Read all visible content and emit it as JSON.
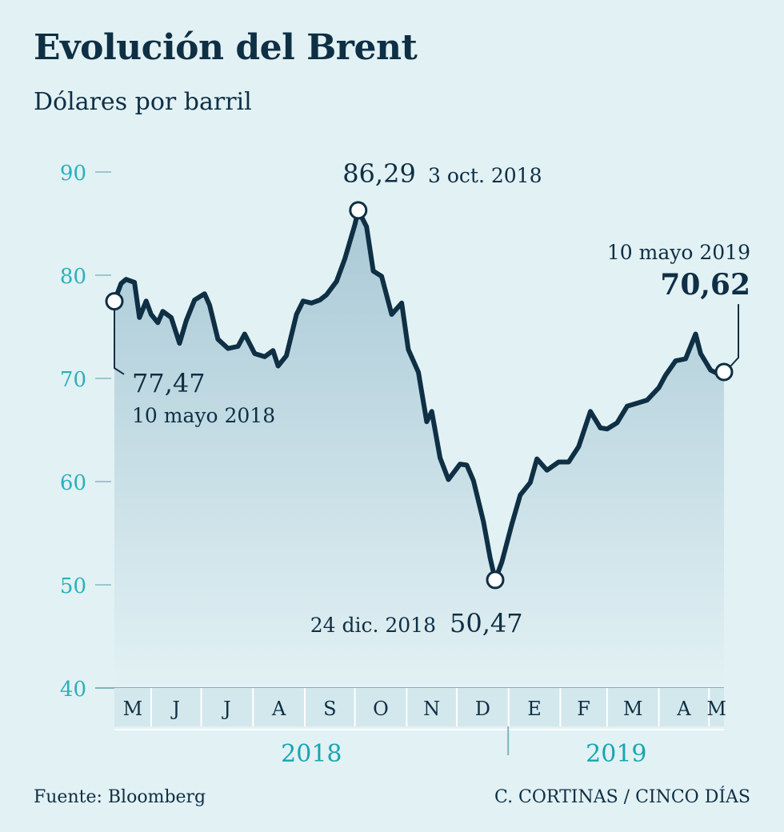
{
  "header": {
    "title": "Evolución del Brent",
    "subtitle": "Dólares por barril"
  },
  "footer": {
    "source": "Fuente: Bloomberg",
    "credit": "C. CORTINAS / CINCO DÍAS"
  },
  "colors": {
    "line": "#0e2f44",
    "area_top": "#a9c9d6",
    "area_bottom": "#e2f1f4",
    "tick": "#2ab0ba",
    "year": "#1aa5b0"
  },
  "chart_data": {
    "type": "area",
    "ylim": [
      40,
      90
    ],
    "yticks": [
      "90",
      "80",
      "70",
      "60",
      "50",
      "40"
    ],
    "months": [
      "M",
      "J",
      "J",
      "A",
      "S",
      "O",
      "N",
      "D",
      "E",
      "F",
      "M",
      "A",
      "M"
    ],
    "years": [
      "2018",
      "2019"
    ],
    "series": [
      {
        "x": [
          "2018-05-10",
          "2018-05-14",
          "2018-05-17",
          "2018-05-22",
          "2018-05-25",
          "2018-05-29",
          "2018-06-01",
          "2018-06-05",
          "2018-06-08",
          "2018-06-13",
          "2018-06-18",
          "2018-06-22",
          "2018-06-27",
          "2018-07-03",
          "2018-07-06",
          "2018-07-11",
          "2018-07-17",
          "2018-07-23",
          "2018-07-27",
          "2018-08-02",
          "2018-08-08",
          "2018-08-13",
          "2018-08-16",
          "2018-08-21",
          "2018-08-27",
          "2018-08-31",
          "2018-09-05",
          "2018-09-10",
          "2018-09-14",
          "2018-09-20",
          "2018-09-25",
          "2018-10-01",
          "2018-10-03",
          "2018-10-08",
          "2018-10-12",
          "2018-10-17",
          "2018-10-23",
          "2018-10-29",
          "2018-11-02",
          "2018-11-08",
          "2018-11-13",
          "2018-11-16",
          "2018-11-21",
          "2018-11-26",
          "2018-12-03",
          "2018-12-07",
          "2018-12-11",
          "2018-12-17",
          "2018-12-21",
          "2018-12-24",
          "2018-12-28",
          "2019-01-03",
          "2019-01-08",
          "2019-01-14",
          "2019-01-18",
          "2019-01-24",
          "2019-01-31",
          "2019-02-06",
          "2019-02-12",
          "2019-02-19",
          "2019-02-25",
          "2019-03-01",
          "2019-03-07",
          "2019-03-13",
          "2019-03-19",
          "2019-03-25",
          "2019-04-01",
          "2019-04-05",
          "2019-04-11",
          "2019-04-17",
          "2019-04-23",
          "2019-04-26",
          "2019-05-02",
          "2019-05-07",
          "2019-05-10"
        ],
        "values": [
          77.47,
          79.2,
          79.6,
          79.3,
          75.9,
          77.5,
          76.2,
          75.4,
          76.5,
          75.9,
          73.4,
          75.6,
          77.6,
          78.2,
          77.1,
          73.8,
          72.9,
          73.1,
          74.3,
          72.4,
          72.1,
          72.7,
          71.2,
          72.2,
          76.2,
          77.5,
          77.3,
          77.6,
          78.1,
          79.4,
          81.6,
          84.9,
          86.29,
          84.7,
          80.4,
          79.9,
          76.2,
          77.3,
          72.8,
          70.6,
          65.8,
          66.8,
          62.3,
          60.2,
          61.7,
          61.6,
          60.1,
          56.1,
          52.6,
          50.47,
          52.2,
          55.9,
          58.7,
          59.9,
          62.2,
          61.1,
          61.9,
          61.9,
          63.4,
          66.8,
          65.2,
          65.1,
          65.7,
          67.3,
          67.6,
          67.9,
          69.1,
          70.3,
          71.7,
          71.9,
          74.3,
          72.4,
          70.8,
          70.4,
          70.62
        ]
      }
    ],
    "annotations": [
      {
        "value": "77,47",
        "date": "10 mayo 2018"
      },
      {
        "value": "86,29",
        "date": "3 oct. 2018"
      },
      {
        "value": "50,47",
        "date": "24 dic. 2018"
      },
      {
        "value": "70,62",
        "date": "10 mayo 2019"
      }
    ]
  }
}
